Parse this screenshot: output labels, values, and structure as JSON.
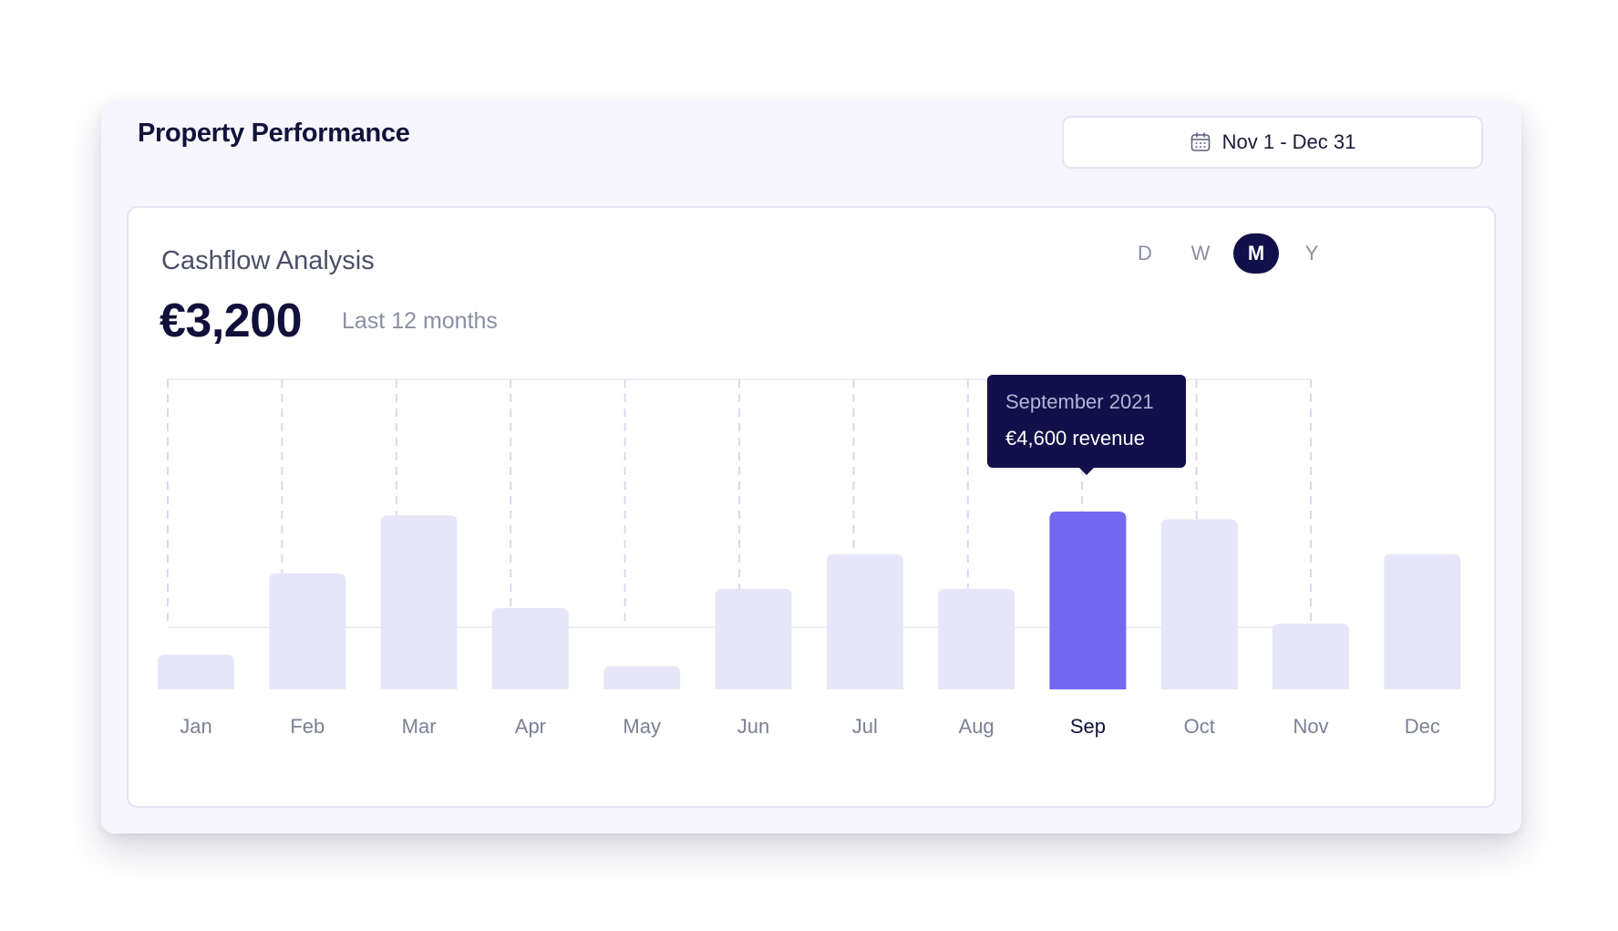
{
  "header": {
    "title": "Property Performance",
    "date_range": "Nov 1 - Dec 31",
    "calendar_icon": "calendar-icon"
  },
  "panel": {
    "title": "Cashflow Analysis",
    "amount": "€3,200",
    "period": "Last 12 months",
    "toggles": [
      {
        "label": "D",
        "active": false
      },
      {
        "label": "W",
        "active": false
      },
      {
        "label": "M",
        "active": true
      },
      {
        "label": "Y",
        "active": false
      }
    ]
  },
  "tooltip": {
    "date": "September 2021",
    "amount": "€4,600",
    "unit": "revenue"
  },
  "colors": {
    "bar": "#e7e6f8",
    "bar_active": "#7468f1",
    "tooltip_bg": "#12104a",
    "label": "#7b8093",
    "label_active": "#12123a"
  },
  "chart_data": {
    "type": "bar",
    "categories": [
      "Jan",
      "Feb",
      "Mar",
      "Apr",
      "May",
      "Jun",
      "Jul",
      "Aug",
      "Sep",
      "Oct",
      "Nov",
      "Dec"
    ],
    "values": [
      900,
      3000,
      4500,
      2100,
      600,
      2600,
      3500,
      2600,
      4600,
      4400,
      1700,
      3500
    ],
    "highlighted": "Sep",
    "ylim": [
      0,
      8000
    ],
    "grid": true
  }
}
